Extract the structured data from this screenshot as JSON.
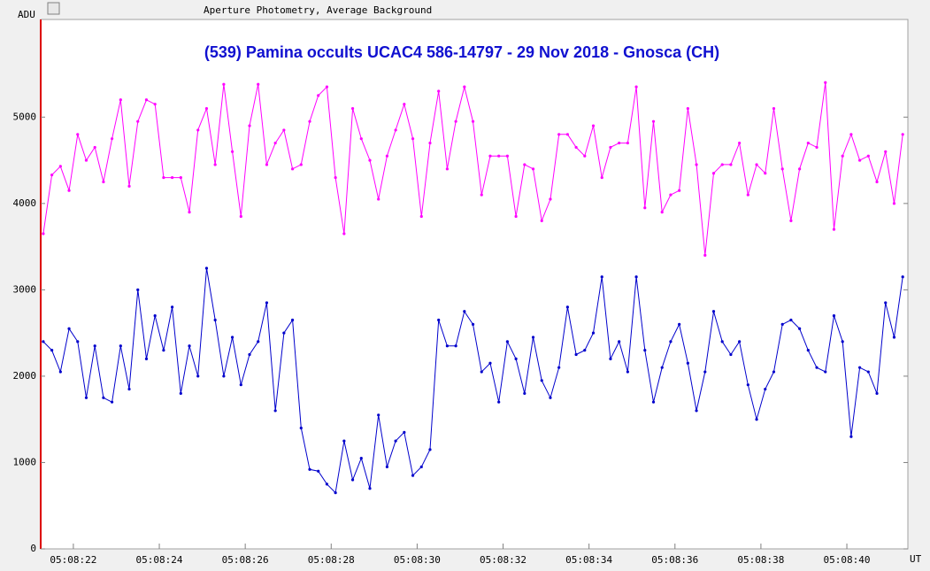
{
  "chart_data": {
    "type": "line",
    "header": "Aperture Photometry, Average Background",
    "title": "(539) Pamina occults UCAC4 586-14797 - 29 Nov 2018 - Gnosca (CH)",
    "ylabel": "ADU",
    "xlabel": "UT",
    "xlim": [
      21.24,
      41.42
    ],
    "ylim": [
      0,
      6100
    ],
    "yticks": [
      0,
      1000,
      2000,
      3000,
      4000,
      5000
    ],
    "xticks": [
      {
        "value": 22,
        "label": "05:08:22"
      },
      {
        "value": 24,
        "label": "05:08:24"
      },
      {
        "value": 26,
        "label": "05:08:26"
      },
      {
        "value": 28,
        "label": "05:08:28"
      },
      {
        "value": 30,
        "label": "05:08:30"
      },
      {
        "value": 32,
        "label": "05:08:32"
      },
      {
        "value": 34,
        "label": "05:08:34"
      },
      {
        "value": 36,
        "label": "05:08:36"
      },
      {
        "value": 38,
        "label": "05:08:38"
      },
      {
        "value": 40,
        "label": "05:08:40"
      }
    ],
    "x": [
      21.3,
      21.5,
      21.7,
      21.9,
      22.1,
      22.3,
      22.5,
      22.7,
      22.9,
      23.1,
      23.3,
      23.5,
      23.7,
      23.9,
      24.1,
      24.3,
      24.5,
      24.7,
      24.9,
      25.1,
      25.3,
      25.5,
      25.7,
      25.9,
      26.1,
      26.3,
      26.5,
      26.7,
      26.9,
      27.1,
      27.3,
      27.5,
      27.7,
      27.9,
      28.1,
      28.3,
      28.5,
      28.7,
      28.9,
      29.1,
      29.3,
      29.5,
      29.7,
      29.9,
      30.1,
      30.3,
      30.5,
      30.7,
      30.9,
      31.1,
      31.3,
      31.5,
      31.7,
      31.9,
      32.1,
      32.3,
      32.5,
      32.7,
      32.9,
      33.1,
      33.3,
      33.5,
      33.7,
      33.9,
      34.1,
      34.3,
      34.5,
      34.7,
      34.9,
      35.1,
      35.3,
      35.5,
      35.7,
      35.9,
      36.1,
      36.3,
      36.5,
      36.7,
      36.9,
      37.1,
      37.3,
      37.5,
      37.7,
      37.9,
      38.1,
      38.3,
      38.5,
      38.7,
      38.9,
      39.1,
      39.3,
      39.5,
      39.7,
      39.9,
      40.1,
      40.3,
      40.5,
      40.7,
      40.9,
      41.1,
      41.3
    ],
    "series": [
      {
        "color": "#ff00ff",
        "values": [
          3650,
          4330,
          4430,
          4150,
          4800,
          4500,
          4650,
          4250,
          4750,
          5200,
          4200,
          4950,
          5200,
          5150,
          4300,
          4300,
          4300,
          3900,
          4850,
          5100,
          4450,
          5380,
          4600,
          3850,
          4900,
          5380,
          4450,
          4700,
          4850,
          4400,
          4450,
          4950,
          5250,
          5350,
          4300,
          3650,
          5100,
          4750,
          4500,
          4050,
          4550,
          4850,
          5150,
          4750,
          3850,
          4700,
          5300,
          4400,
          4950,
          5350,
          4950,
          4100,
          4550,
          4550,
          4550,
          3850,
          4450,
          4400,
          3800,
          4050,
          4800,
          4800,
          4650,
          4550,
          4900,
          4300,
          4650,
          4700,
          4700,
          5350,
          3950,
          4950,
          3900,
          4100,
          4150,
          5100,
          4450,
          3400,
          4350,
          4450,
          4450,
          4700,
          4100,
          4450,
          4350,
          5100,
          4400,
          3800,
          4400,
          4700,
          4650,
          5400,
          3700,
          4550,
          4800,
          4500,
          4550,
          4250,
          4600,
          4000,
          4800
        ]
      },
      {
        "color": "#0000cc",
        "values": [
          2400,
          2300,
          2050,
          2550,
          2400,
          1750,
          2350,
          1750,
          1700,
          2350,
          1850,
          3000,
          2200,
          2700,
          2300,
          2800,
          1800,
          2350,
          2000,
          3250,
          2650,
          2000,
          2450,
          1900,
          2250,
          2400,
          2850,
          1600,
          2500,
          2650,
          1400,
          920,
          900,
          750,
          650,
          1250,
          800,
          1050,
          700,
          1550,
          950,
          1250,
          1350,
          850,
          950,
          1150,
          2650,
          2350,
          2350,
          2750,
          2600,
          2050,
          2150,
          1700,
          2400,
          2200,
          1800,
          2450,
          1950,
          1750,
          2100,
          2800,
          2250,
          2300,
          2500,
          3150,
          2200,
          2400,
          2050,
          3150,
          2300,
          1700,
          2100,
          2400,
          2600,
          2150,
          1600,
          2050,
          2750,
          2400,
          2250,
          2400,
          1900,
          1500,
          1850,
          2050,
          2600,
          2650,
          2550,
          2300,
          2100,
          2050,
          2700,
          2400,
          1300,
          2100,
          2050,
          1800,
          2850,
          2450,
          3150
        ]
      }
    ]
  }
}
